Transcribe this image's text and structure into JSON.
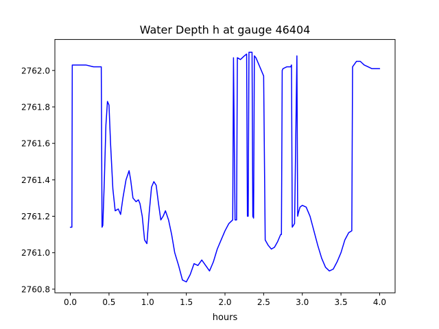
{
  "chart_data": {
    "type": "line",
    "title": "Water Depth h at gauge 46404",
    "xlabel": "hours",
    "ylabel": "",
    "xlim": [
      -0.2,
      4.2
    ],
    "ylim": [
      2760.78,
      2762.17
    ],
    "xticks": [
      0.0,
      0.5,
      1.0,
      1.5,
      2.0,
      2.5,
      3.0,
      3.5,
      4.0
    ],
    "xtick_labels": [
      "0.0",
      "0.5",
      "1.0",
      "1.5",
      "2.0",
      "2.5",
      "3.0",
      "3.5",
      "4.0"
    ],
    "yticks": [
      2760.8,
      2761.0,
      2761.2,
      2761.4,
      2761.6,
      2761.8,
      2762.0
    ],
    "ytick_labels": [
      "2760.8",
      "2761.0",
      "2761.2",
      "2761.4",
      "2761.6",
      "2761.8",
      "2762.0"
    ],
    "grid": false,
    "line_color": "#0000ff",
    "series": [
      {
        "x": [
          0.0,
          0.02,
          0.025,
          0.1,
          0.2,
          0.3,
          0.35,
          0.4,
          0.41,
          0.42,
          0.44,
          0.46,
          0.48,
          0.5,
          0.52,
          0.55,
          0.58,
          0.62,
          0.65,
          0.68,
          0.72,
          0.76,
          0.78,
          0.81,
          0.85,
          0.88,
          0.9,
          0.93,
          0.96,
          0.99,
          1.02,
          1.05,
          1.08,
          1.11,
          1.14,
          1.17,
          1.2,
          1.23,
          1.27,
          1.31,
          1.35,
          1.4,
          1.45,
          1.5,
          1.55,
          1.6,
          1.65,
          1.7,
          1.75,
          1.8,
          1.85,
          1.9,
          1.95,
          2.0,
          2.05,
          2.1,
          2.11,
          2.13,
          2.15,
          2.16,
          2.2,
          2.25,
          2.28,
          2.29,
          2.3,
          2.31,
          2.35,
          2.36,
          2.37,
          2.38,
          2.4,
          2.45,
          2.5,
          2.52,
          2.56,
          2.6,
          2.64,
          2.68,
          2.72,
          2.73,
          2.74,
          2.75,
          2.8,
          2.85,
          2.86,
          2.87,
          2.9,
          2.93,
          2.94,
          2.95,
          2.97,
          3.0,
          3.05,
          3.1,
          3.15,
          3.2,
          3.25,
          3.3,
          3.35,
          3.4,
          3.45,
          3.5,
          3.55,
          3.6,
          3.64,
          3.65,
          3.7,
          3.75,
          3.8,
          3.85,
          3.9,
          3.95,
          4.0
        ],
        "y": [
          2761.14,
          2761.14,
          2762.03,
          2762.03,
          2762.03,
          2762.02,
          2762.02,
          2762.02,
          2761.14,
          2761.15,
          2761.4,
          2761.7,
          2761.83,
          2761.81,
          2761.6,
          2761.35,
          2761.23,
          2761.24,
          2761.21,
          2761.3,
          2761.4,
          2761.45,
          2761.4,
          2761.3,
          2761.28,
          2761.29,
          2761.27,
          2761.2,
          2761.07,
          2761.05,
          2761.22,
          2761.36,
          2761.39,
          2761.37,
          2761.27,
          2761.18,
          2761.2,
          2761.23,
          2761.18,
          2761.1,
          2761.0,
          2760.93,
          2760.85,
          2760.84,
          2760.88,
          2760.94,
          2760.93,
          2760.96,
          2760.93,
          2760.9,
          2760.95,
          2761.02,
          2761.07,
          2761.12,
          2761.16,
          2761.18,
          2762.07,
          2761.18,
          2761.18,
          2762.07,
          2762.06,
          2762.08,
          2762.09,
          2761.2,
          2761.2,
          2762.1,
          2762.1,
          2761.2,
          2761.19,
          2762.08,
          2762.07,
          2762.02,
          2761.97,
          2761.07,
          2761.04,
          2761.02,
          2761.03,
          2761.06,
          2761.1,
          2761.1,
          2762.0,
          2762.01,
          2762.02,
          2762.02,
          2762.03,
          2761.14,
          2761.16,
          2762.08,
          2761.2,
          2761.22,
          2761.25,
          2761.26,
          2761.25,
          2761.2,
          2761.12,
          2761.04,
          2760.97,
          2760.92,
          2760.9,
          2760.91,
          2760.95,
          2761.0,
          2761.07,
          2761.11,
          2761.12,
          2762.02,
          2762.05,
          2762.05,
          2762.03,
          2762.02,
          2762.01,
          2762.01,
          2762.01
        ]
      }
    ]
  }
}
